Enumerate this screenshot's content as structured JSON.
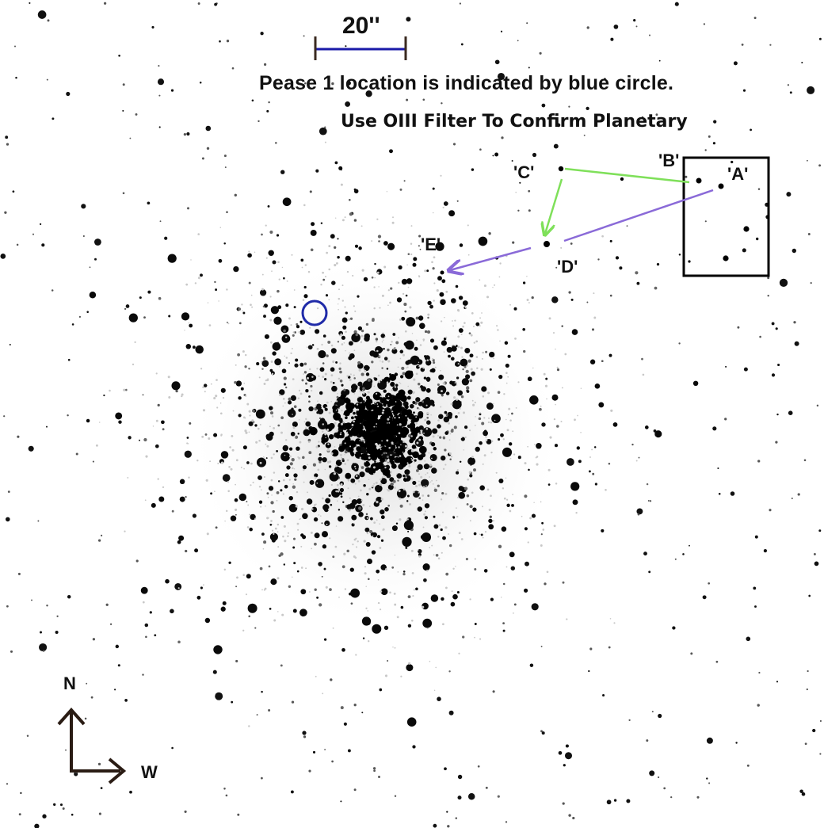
{
  "scale_bar": {
    "label": "20''",
    "color": "#1a1aa8"
  },
  "notes": {
    "line1": "Pease 1 location is indicated by blue circle.",
    "line2": "Use OIII Filter To Confirm Planetary"
  },
  "star_labels": {
    "A": "'A'",
    "B": "'B'",
    "C": "'C'",
    "D": "'D'",
    "E": "'E'"
  },
  "compass": {
    "north": "N",
    "west": "W",
    "color": "#2a1c14"
  },
  "colors": {
    "target_circle": "#1f2aa8",
    "path_green": "#7fe05a",
    "path_purple": "#8a6ad8",
    "box": "#000000"
  }
}
